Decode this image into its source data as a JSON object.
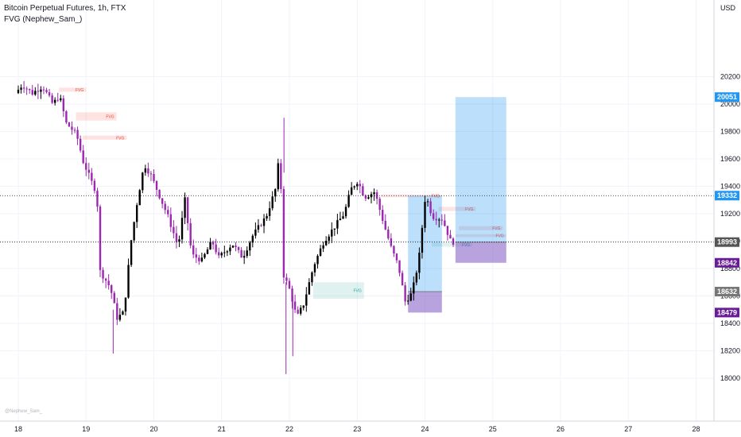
{
  "chart_data": {
    "type": "candlestick",
    "title": "Bitcoin Perpetual Futures, 1h, FTX",
    "indicator": "FVG (Nephew_Sam_)",
    "currency": "USD",
    "watermark": "@Nephew_Sam_",
    "y_ticks": [
      18000,
      18200,
      18400,
      18600,
      18800,
      19000,
      19200,
      19400,
      19600,
      19800,
      20000,
      20200
    ],
    "ylim": [
      17920,
      20380
    ],
    "x_ticks": [
      {
        "label": "18",
        "day": 18
      },
      {
        "label": "19",
        "day": 19
      },
      {
        "label": "20",
        "day": 20
      },
      {
        "label": "21",
        "day": 21
      },
      {
        "label": "22",
        "day": 22
      },
      {
        "label": "23",
        "day": 23
      },
      {
        "label": "24",
        "day": 24
      },
      {
        "label": "25",
        "day": 25
      },
      {
        "label": "26",
        "day": 26
      },
      {
        "label": "27",
        "day": 27
      },
      {
        "label": "28",
        "day": 28
      }
    ],
    "colors": {
      "up": "#000000",
      "down": "#9c27b0",
      "fvg_bear": "#f44336",
      "fvg_bull": "#26a69a",
      "target": "#2196f3",
      "stop": "#7e57c2",
      "price_line": "#131722"
    },
    "price_levels": [
      {
        "label": "20051",
        "value": 20051,
        "color": "#2196f3",
        "line": false
      },
      {
        "label": "19332",
        "value": 19332,
        "color": "#2196f3",
        "line": true
      },
      {
        "label": "18993",
        "value": 18993,
        "color": "#555555",
        "line": true
      },
      {
        "label": "18842",
        "value": 18842,
        "color": "#6a1b9a",
        "line": false
      },
      {
        "label": "18632",
        "value": 18632,
        "color": "#777777",
        "line": false
      },
      {
        "label": "18479",
        "value": 18479,
        "color": "#6a1b9a",
        "line": false
      }
    ],
    "anchors": [
      [
        18.0,
        20080
      ],
      [
        18.1,
        20140
      ],
      [
        18.25,
        20080
      ],
      [
        18.4,
        20130
      ],
      [
        18.55,
        20000
      ],
      [
        18.65,
        20060
      ],
      [
        18.75,
        19860
      ],
      [
        18.9,
        19780
      ],
      [
        19.0,
        19580
      ],
      [
        19.15,
        19400
      ],
      [
        19.2,
        19360
      ],
      [
        19.25,
        18780
      ],
      [
        19.4,
        18660
      ],
      [
        19.5,
        18440
      ],
      [
        19.6,
        18480
      ],
      [
        19.7,
        18980
      ],
      [
        19.8,
        19300
      ],
      [
        19.9,
        19560
      ],
      [
        20.0,
        19480
      ],
      [
        20.1,
        19360
      ],
      [
        20.25,
        19180
      ],
      [
        20.4,
        18960
      ],
      [
        20.5,
        19300
      ],
      [
        20.6,
        18900
      ],
      [
        20.75,
        18860
      ],
      [
        20.9,
        19000
      ],
      [
        21.0,
        18880
      ],
      [
        21.2,
        18980
      ],
      [
        21.35,
        18880
      ],
      [
        21.5,
        19040
      ],
      [
        21.7,
        19180
      ],
      [
        21.85,
        19400
      ],
      [
        21.9,
        19700
      ],
      [
        21.95,
        18760
      ],
      [
        22.05,
        18640
      ],
      [
        22.15,
        18440
      ],
      [
        22.25,
        18540
      ],
      [
        22.4,
        18820
      ],
      [
        22.55,
        19000
      ],
      [
        22.7,
        19100
      ],
      [
        22.85,
        19200
      ],
      [
        22.95,
        19380
      ],
      [
        23.05,
        19440
      ],
      [
        23.15,
        19320
      ],
      [
        23.3,
        19360
      ],
      [
        23.45,
        19100
      ],
      [
        23.55,
        18940
      ],
      [
        23.65,
        18820
      ],
      [
        23.75,
        18560
      ],
      [
        23.85,
        18620
      ],
      [
        23.95,
        18860
      ],
      [
        24.05,
        19340
      ],
      [
        24.15,
        19180
      ],
      [
        24.3,
        19160
      ],
      [
        24.42,
        19000
      ],
      [
        24.45,
        18993
      ]
    ],
    "fvg_boxes": [
      {
        "label": "FVG",
        "kind": "bear",
        "d1": 18.6,
        "d2": 19.0,
        "p1": 20090,
        "p2": 20120
      },
      {
        "label": "FVG",
        "kind": "bear",
        "d1": 18.85,
        "d2": 19.45,
        "p1": 19880,
        "p2": 19940
      },
      {
        "label": "FVG",
        "kind": "bear",
        "d1": 18.95,
        "d2": 19.6,
        "p1": 19740,
        "p2": 19770
      },
      {
        "label": "FVG",
        "kind": "bull",
        "d1": 22.35,
        "d2": 23.1,
        "p1": 18580,
        "p2": 18700
      },
      {
        "label": "FVG",
        "kind": "bear",
        "d1": 23.35,
        "d2": 24.25,
        "p1": 19320,
        "p2": 19340
      },
      {
        "label": "FVG",
        "kind": "bear",
        "d1": 24.2,
        "d2": 24.75,
        "p1": 19220,
        "p2": 19250
      },
      {
        "label": "FVG",
        "kind": "bear",
        "d1": 24.5,
        "d2": 25.15,
        "p1": 19080,
        "p2": 19110
      },
      {
        "label": "FVG",
        "kind": "bear",
        "d1": 24.45,
        "d2": 25.2,
        "p1": 19030,
        "p2": 19050
      },
      {
        "label": "FVG",
        "kind": "bull",
        "d1": 24.1,
        "d2": 24.7,
        "p1": 18960,
        "p2": 18990
      }
    ],
    "positions": [
      {
        "d1": 23.75,
        "d2": 24.25,
        "entry": 18632,
        "target": 19332,
        "stop": 18479
      },
      {
        "d1": 24.45,
        "d2": 25.2,
        "entry": 18993,
        "target": 20051,
        "stop": 18842
      }
    ]
  }
}
